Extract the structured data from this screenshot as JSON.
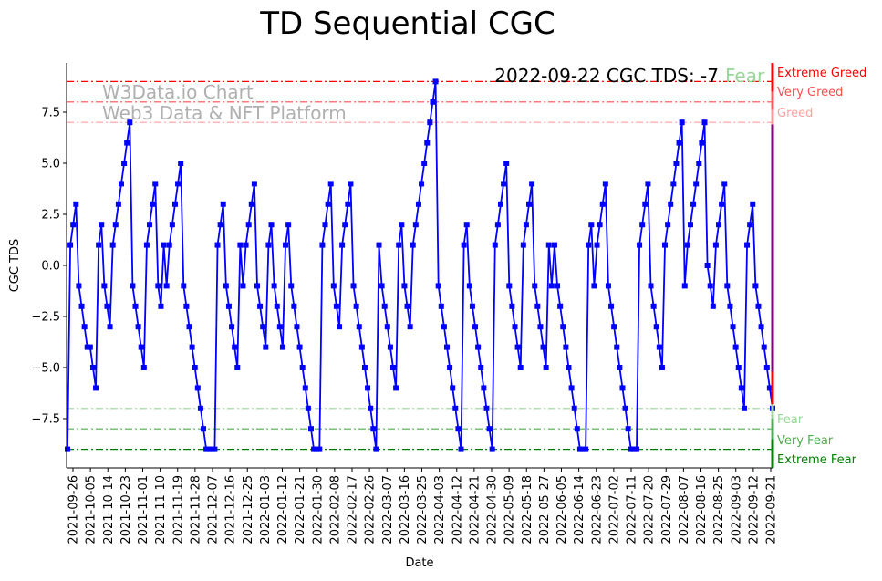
{
  "chart_data": {
    "type": "line",
    "title": "TD Sequential CGC",
    "xlabel": "Date",
    "ylabel": "CGC TDS",
    "ylim": [
      -10,
      10
    ],
    "yticks": [
      -7.5,
      -5.0,
      -2.5,
      0.0,
      2.5,
      5.0,
      7.5
    ],
    "ytick_labels": [
      "−7.5",
      "−5.0",
      "−2.5",
      "0.0",
      "2.5",
      "5.0",
      "7.5"
    ],
    "xtick_labels": [
      "2021-09-26",
      "2021-10-05",
      "2021-10-14",
      "2021-10-23",
      "2021-11-01",
      "2021-11-10",
      "2021-11-19",
      "2021-11-28",
      "2021-12-07",
      "2021-12-16",
      "2021-12-25",
      "2022-01-03",
      "2022-01-12",
      "2022-01-21",
      "2022-01-30",
      "2022-02-08",
      "2022-02-17",
      "2022-02-26",
      "2022-03-07",
      "2022-03-16",
      "2022-03-25",
      "2022-04-03",
      "2022-04-12",
      "2022-04-21",
      "2022-04-30",
      "2022-05-09",
      "2022-05-18",
      "2022-05-27",
      "2022-06-05",
      "2022-06-14",
      "2022-06-23",
      "2022-07-02",
      "2022-07-11",
      "2022-07-20",
      "2022-07-29",
      "2022-08-07",
      "2022-08-16",
      "2022-08-25",
      "2022-09-03",
      "2022-09-12",
      "2022-09-21"
    ],
    "grid": false,
    "series": [
      {
        "name": "CGC TDS",
        "color": "#0000ff",
        "values": [
          -9,
          1,
          2,
          3,
          -1,
          -2,
          -3,
          -4,
          -4,
          -5,
          -6,
          1,
          2,
          -1,
          -2,
          -3,
          1,
          2,
          3,
          4,
          5,
          6,
          7,
          -1,
          -2,
          -3,
          -4,
          -5,
          1,
          2,
          3,
          4,
          -1,
          -2,
          1,
          -1,
          1,
          2,
          3,
          4,
          5,
          -1,
          -2,
          -3,
          -4,
          -5,
          -6,
          -7,
          -8,
          -9,
          -9,
          -9,
          -9,
          1,
          2,
          3,
          -1,
          -2,
          -3,
          -4,
          -5,
          1,
          -1,
          1,
          2,
          3,
          4,
          -1,
          -2,
          -3,
          -4,
          1,
          2,
          -1,
          -2,
          -3,
          -4,
          1,
          2,
          -1,
          -2,
          -3,
          -4,
          -5,
          -6,
          -7,
          -8,
          -9,
          -9,
          -9,
          1,
          2,
          3,
          4,
          -1,
          -2,
          -3,
          1,
          2,
          3,
          4,
          -1,
          -2,
          -3,
          -4,
          -5,
          -6,
          -7,
          -8,
          -9,
          1,
          -1,
          -2,
          -3,
          -4,
          -5,
          -6,
          1,
          2,
          -1,
          -2,
          -3,
          1,
          2,
          3,
          4,
          5,
          6,
          7,
          8,
          9,
          -1,
          -2,
          -3,
          -4,
          -5,
          -6,
          -7,
          -8,
          -9,
          1,
          2,
          -1,
          -2,
          -3,
          -4,
          -5,
          -6,
          -7,
          -8,
          -9,
          1,
          2,
          3,
          4,
          5,
          -1,
          -2,
          -3,
          -4,
          -5,
          1,
          2,
          3,
          4,
          -1,
          -2,
          -3,
          -4,
          -5,
          1,
          -1,
          1,
          -1,
          -2,
          -3,
          -4,
          -5,
          -6,
          -7,
          -8,
          -9,
          -9,
          -9,
          1,
          2,
          -1,
          1,
          2,
          3,
          4,
          -1,
          -2,
          -3,
          -4,
          -5,
          -6,
          -7,
          -8,
          -9,
          -9,
          -9,
          1,
          2,
          3,
          4,
          -1,
          -2,
          -3,
          -4,
          -5,
          1,
          2,
          3,
          4,
          5,
          6,
          7,
          -1,
          1,
          2,
          3,
          4,
          5,
          6,
          7,
          0,
          -1,
          -2,
          1,
          2,
          3,
          4,
          -1,
          -2,
          -3,
          -4,
          -5,
          -6,
          -7,
          1,
          2,
          3,
          -1,
          -2,
          -3,
          -4,
          -5,
          -6,
          -7
        ]
      }
    ],
    "thresholds": [
      {
        "value": 9,
        "label": "Extreme Greed",
        "color": "#ff0000"
      },
      {
        "value": 8,
        "label": "Very Greed",
        "color": "#ff4d4d"
      },
      {
        "value": 7,
        "label": "Greed",
        "color": "#ffa0a0"
      },
      {
        "value": -7,
        "label": "Fear",
        "color": "#99d699"
      },
      {
        "value": -8,
        "label": "Very Fear",
        "color": "#4caf50"
      },
      {
        "value": -9,
        "label": "Extreme Fear",
        "color": "#008000"
      }
    ],
    "annotation": {
      "text": "2022-09-22 CGC TDS: -7",
      "status": "Fear",
      "status_color": "#99d699"
    },
    "watermark": [
      "W3Data.io Chart",
      "Web3 Data & NFT Platform"
    ]
  }
}
